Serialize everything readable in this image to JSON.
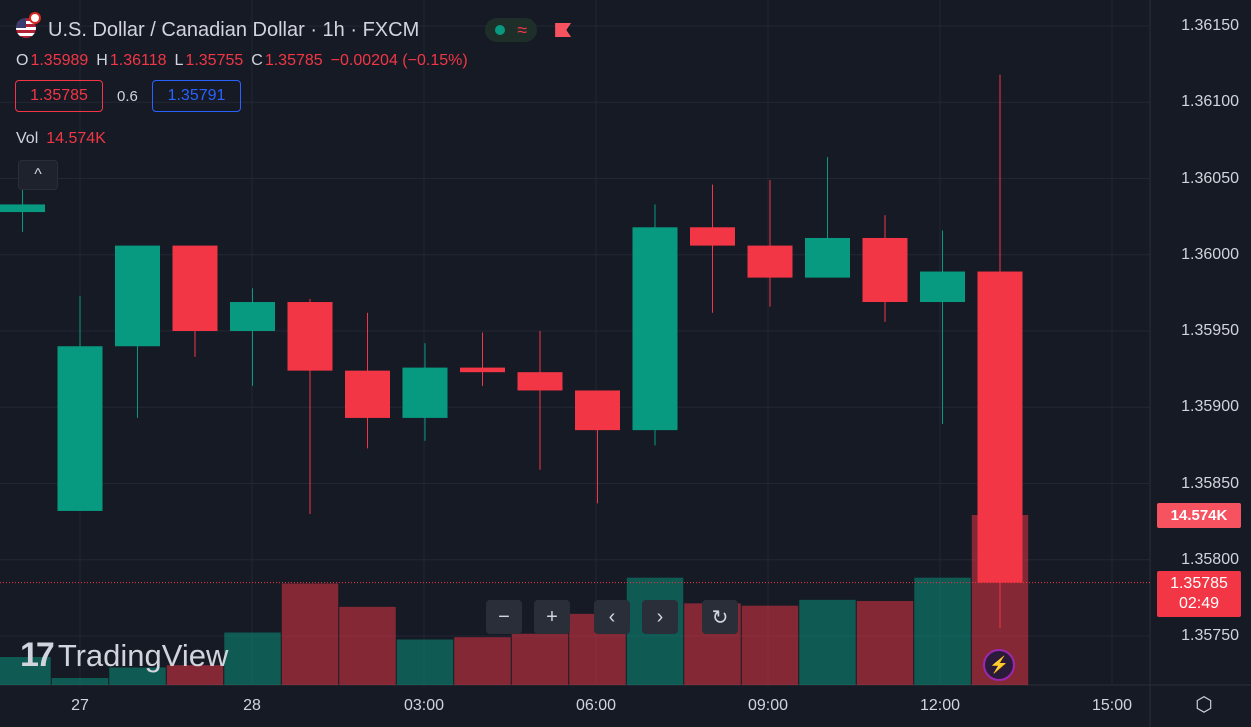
{
  "header": {
    "symbol_title": "U.S. Dollar / Canadian Dollar · 1h · FXCM",
    "ohlc": {
      "o_label": "O",
      "o": "1.35989",
      "h_label": "H",
      "h": "1.36118",
      "l_label": "L",
      "l": "1.35755",
      "c_label": "C",
      "c": "1.35785",
      "change": "−0.00204 (−0.15%)"
    },
    "sell_price": "1.35785",
    "spread": "0.6",
    "buy_price": "1.35791",
    "volume_label": "Vol",
    "volume_value": "14.574K",
    "colors": {
      "up": "#089981",
      "down": "#f23645",
      "buy": "#2962ff"
    }
  },
  "badges": {
    "volume": "14.574K",
    "price": "1.35785",
    "countdown": "02:49"
  },
  "toolbar": {
    "zoom_out": "−",
    "zoom_in": "+",
    "scroll_left": "‹",
    "scroll_right": "›",
    "reset": "↻"
  },
  "logo": {
    "mark": "17",
    "text": "TradingView"
  },
  "icons": {
    "collapse": "chevron-up-icon",
    "bolt": "lightning-icon",
    "settings": "settings-gear-icon"
  },
  "chart_data": {
    "type": "candlestick",
    "title": "U.S. Dollar / Canadian Dollar · 1h · FXCM",
    "y_tick_labels": [
      "1.36150",
      "1.36100",
      "1.36050",
      "1.36000",
      "1.35950",
      "1.35900",
      "1.35850",
      "1.35800",
      "1.35750"
    ],
    "ylim": [
      1.35705,
      1.3618
    ],
    "x_tick_labels": [
      "27",
      "28",
      "03:00",
      "06:00",
      "09:00",
      "12:00",
      "15:00"
    ],
    "last_price": 1.35785,
    "candles": [
      {
        "o": 1.36028,
        "h": 1.36045,
        "l": 1.36015,
        "c": 1.36033
      },
      {
        "o": 1.35832,
        "h": 1.35973,
        "l": 1.35832,
        "c": 1.3594
      },
      {
        "o": 1.3594,
        "h": 1.36006,
        "l": 1.35893,
        "c": 1.36006
      },
      {
        "o": 1.36006,
        "h": 1.36006,
        "l": 1.35933,
        "c": 1.3595
      },
      {
        "o": 1.3595,
        "h": 1.35978,
        "l": 1.35914,
        "c": 1.35969
      },
      {
        "o": 1.35969,
        "h": 1.35971,
        "l": 1.3583,
        "c": 1.35924
      },
      {
        "o": 1.35924,
        "h": 1.35962,
        "l": 1.35873,
        "c": 1.35893
      },
      {
        "o": 1.35893,
        "h": 1.35942,
        "l": 1.35878,
        "c": 1.35926
      },
      {
        "o": 1.35926,
        "h": 1.35949,
        "l": 1.35914,
        "c": 1.35923
      },
      {
        "o": 1.35923,
        "h": 1.3595,
        "l": 1.35859,
        "c": 1.35911
      },
      {
        "o": 1.35911,
        "h": 1.35911,
        "l": 1.35837,
        "c": 1.35885
      },
      {
        "o": 1.35885,
        "h": 1.36033,
        "l": 1.35875,
        "c": 1.36018
      },
      {
        "o": 1.36018,
        "h": 1.36046,
        "l": 1.35962,
        "c": 1.36006
      },
      {
        "o": 1.36006,
        "h": 1.36049,
        "l": 1.35966,
        "c": 1.35985
      },
      {
        "o": 1.35985,
        "h": 1.36064,
        "l": 1.35985,
        "c": 1.36011
      },
      {
        "o": 1.36011,
        "h": 1.36026,
        "l": 1.35956,
        "c": 1.35969
      },
      {
        "o": 1.35969,
        "h": 1.36016,
        "l": 1.35889,
        "c": 1.35989
      },
      {
        "o": 1.35989,
        "h": 1.36118,
        "l": 1.35755,
        "c": 1.35785
      }
    ],
    "volume": {
      "label": "Vol",
      "max": 14574,
      "bars": [
        {
          "v": 2400,
          "dir": "up"
        },
        {
          "v": 600,
          "dir": "up"
        },
        {
          "v": 1500,
          "dir": "up"
        },
        {
          "v": 1700,
          "dir": "down"
        },
        {
          "v": 4500,
          "dir": "up"
        },
        {
          "v": 8700,
          "dir": "down"
        },
        {
          "v": 6700,
          "dir": "down"
        },
        {
          "v": 3900,
          "dir": "up"
        },
        {
          "v": 4100,
          "dir": "down"
        },
        {
          "v": 4400,
          "dir": "down"
        },
        {
          "v": 6100,
          "dir": "down"
        },
        {
          "v": 9200,
          "dir": "up"
        },
        {
          "v": 7000,
          "dir": "down"
        },
        {
          "v": 6800,
          "dir": "down"
        },
        {
          "v": 7300,
          "dir": "up"
        },
        {
          "v": 7200,
          "dir": "down"
        },
        {
          "v": 9200,
          "dir": "up"
        },
        {
          "v": 14574,
          "dir": "down"
        }
      ]
    },
    "grid": true
  }
}
